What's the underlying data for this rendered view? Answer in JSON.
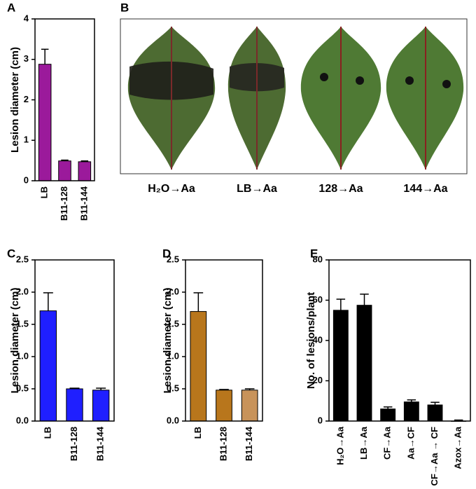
{
  "chart_data": [
    {
      "type": "bar",
      "panel": "A",
      "y_label": "Lesion diameter (cm)",
      "categories": [
        "LB",
        "B11-128",
        "B11-144"
      ],
      "values": [
        2.88,
        0.49,
        0.47
      ],
      "errors": [
        0.37,
        0.02,
        0.02
      ],
      "colors": [
        "#9b1a9b",
        "#9b1a9b",
        "#9b1a9b"
      ],
      "ylim": [
        0,
        4
      ],
      "yticks": [
        0,
        1,
        2,
        3,
        4
      ]
    },
    {
      "type": "bar",
      "panel": "C",
      "y_label": "Lesion diameter (cm)",
      "categories": [
        "LB",
        "B11-128",
        "B11-144"
      ],
      "values": [
        1.71,
        0.5,
        0.48
      ],
      "errors": [
        0.28,
        0.01,
        0.03
      ],
      "colors": [
        "#1f1fff",
        "#1f1fff",
        "#1f1fff"
      ],
      "ylim": [
        0,
        2.5
      ],
      "yticks": [
        {
          "value": 0,
          "label": "0.0"
        },
        0.5,
        {
          "value": 1,
          "label": "1.0"
        },
        1.5,
        {
          "value": 2,
          "label": "2.0"
        },
        2.5
      ]
    },
    {
      "type": "bar",
      "panel": "D",
      "y_label": "Lesion diameter (cm)",
      "categories": [
        "LB",
        "B11-128",
        "B11-144"
      ],
      "values": [
        1.7,
        0.48,
        0.48
      ],
      "errors": [
        0.29,
        0.01,
        0.02
      ],
      "colors": [
        "#b8761c",
        "#b8761c",
        "#c8935a"
      ],
      "ylim": [
        0,
        2.5
      ],
      "yticks": [
        {
          "value": 0,
          "label": "0.0"
        },
        0.5,
        {
          "value": 1,
          "label": "1.0"
        },
        1.5,
        {
          "value": 2,
          "label": "2.0"
        },
        2.5
      ]
    },
    {
      "type": "bar",
      "panel": "E",
      "y_label": "No. of lesions/plant",
      "categories": [
        "H₂O→Aa",
        "LB→Aa",
        "CF→Aa",
        "Aa→CF",
        "CF→Aa → CF",
        "Azox→Aa"
      ],
      "values": [
        55,
        57.5,
        6,
        9.5,
        8,
        0
      ],
      "errors": [
        5.5,
        5.5,
        1,
        1,
        1.3,
        0.5
      ],
      "colors": [
        "#000000",
        "#000000",
        "#000000",
        "#000000",
        "#000000",
        "#000000"
      ],
      "ylim": [
        0,
        80
      ],
      "yticks": [
        0,
        20,
        40,
        60,
        80
      ]
    }
  ],
  "photo_panel": {
    "panel": "B",
    "labels": [
      "H₂O→Aa",
      "LB→Aa",
      "128→Aa",
      "144→Aa"
    ]
  }
}
